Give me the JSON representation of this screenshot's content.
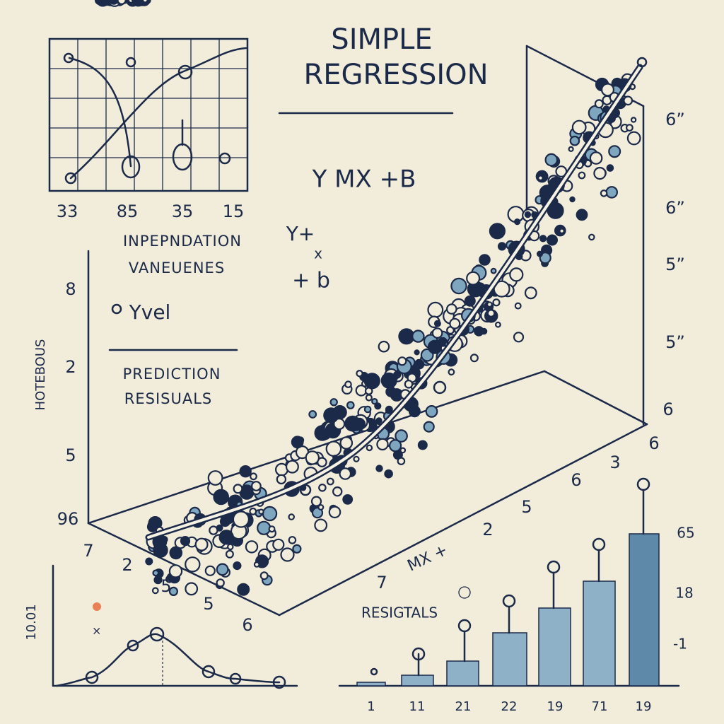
{
  "title": {
    "line1": "SIMPLE",
    "line2": "REGRESSION"
  },
  "formula": "Y MX +B",
  "formula_fragments": [
    "Y+",
    "x",
    "+ b"
  ],
  "inset_chart": {
    "x_labels": [
      "33",
      "85",
      "35",
      "15"
    ]
  },
  "labels": {
    "independent": [
      "INPEPNDATION",
      "VANEUENES"
    ],
    "yvel": "Yvel",
    "prediction": [
      "PREDICTION",
      "RESISUALS"
    ],
    "side_axis": "HOTEBOUS",
    "residuals": "RESIGTALS",
    "mx": "MX +"
  },
  "left_axis_numbers": [
    "8",
    "2",
    "5",
    "96"
  ],
  "right_axis_numbers": [
    "6”",
    "6”",
    "5”",
    "5”",
    "6"
  ],
  "floor_numbers": [
    "7",
    "2",
    "5",
    "5",
    "6",
    "7",
    "2",
    "5",
    "6",
    "3",
    "6"
  ],
  "bottom_left": {
    "y_label": "10.01"
  },
  "bar_chart": {
    "x_labels": [
      "1",
      "11",
      "21",
      "22",
      "19",
      "71",
      "19"
    ],
    "right_labels": [
      "65",
      "18",
      "-1"
    ]
  }
}
